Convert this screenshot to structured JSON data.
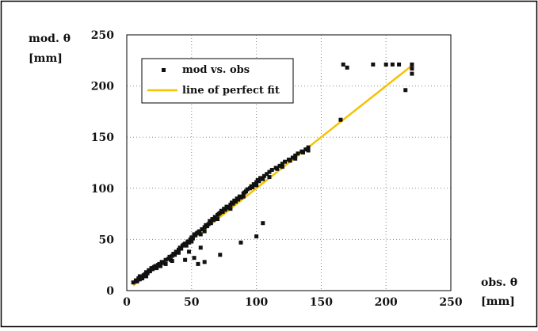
{
  "chart_data": {
    "type": "scatter",
    "title": "",
    "ylabel_line1": "mod. θ",
    "ylabel_line2": "[mm]",
    "xlabel_line1": "obs. θ",
    "xlabel_line2": "[mm]",
    "xlim": [
      0,
      250
    ],
    "ylim": [
      0,
      250
    ],
    "xticks": [
      0,
      50,
      100,
      150,
      200,
      250
    ],
    "yticks": [
      0,
      50,
      100,
      150,
      200,
      250
    ],
    "grid": true,
    "legend_position": "top-left",
    "legend": {
      "scatter_label": "mod vs. obs",
      "line_label": "line of perfect fit"
    },
    "colors": {
      "points": "#111111",
      "fit_line": "#f5c200",
      "grid": "#8a8a8a",
      "frame": "#000000"
    },
    "series": [
      {
        "name": "mod vs. obs",
        "kind": "scatter",
        "x": [
          5,
          7,
          8,
          9,
          10,
          10,
          11,
          12,
          13,
          14,
          15,
          15,
          16,
          17,
          18,
          19,
          20,
          21,
          22,
          23,
          24,
          25,
          26,
          27,
          28,
          30,
          30,
          32,
          33,
          34,
          35,
          35,
          36,
          37,
          38,
          40,
          40,
          41,
          42,
          43,
          44,
          45,
          46,
          47,
          48,
          49,
          50,
          50,
          51,
          52,
          53,
          54,
          55,
          56,
          57,
          58,
          60,
          60,
          61,
          62,
          63,
          64,
          65,
          66,
          67,
          68,
          70,
          70,
          71,
          72,
          73,
          74,
          75,
          76,
          77,
          78,
          80,
          80,
          81,
          82,
          83,
          84,
          85,
          86,
          87,
          88,
          90,
          90,
          91,
          92,
          93,
          95,
          96,
          97,
          98,
          100,
          100,
          101,
          102,
          103,
          105,
          106,
          108,
          110,
          110,
          112,
          115,
          116,
          118,
          120,
          120,
          122,
          125,
          126,
          128,
          130,
          130,
          132,
          135,
          136,
          138,
          140,
          140,
          165,
          167,
          170,
          190,
          200,
          205,
          210,
          215,
          220,
          220,
          220,
          55,
          57,
          60,
          72,
          88,
          100,
          105,
          45,
          48,
          52
        ],
        "y": [
          8,
          10,
          9,
          12,
          11,
          14,
          13,
          12,
          15,
          16,
          18,
          14,
          17,
          20,
          19,
          22,
          21,
          23,
          24,
          22,
          25,
          26,
          24,
          28,
          27,
          30,
          26,
          31,
          33,
          30,
          34,
          29,
          36,
          35,
          38,
          40,
          37,
          42,
          41,
          44,
          45,
          46,
          44,
          48,
          47,
          50,
          52,
          48,
          51,
          55,
          54,
          56,
          57,
          58,
          55,
          60,
          62,
          58,
          64,
          63,
          65,
          68,
          66,
          70,
          69,
          72,
          74,
          70,
          75,
          76,
          78,
          77,
          80,
          79,
          82,
          81,
          84,
          80,
          86,
          85,
          88,
          87,
          90,
          89,
          92,
          91,
          95,
          92,
          96,
          97,
          99,
          100,
          102,
          101,
          104,
          106,
          103,
          108,
          107,
          110,
          109,
          112,
          114,
          116,
          111,
          118,
          120,
          119,
          122,
          124,
          121,
          126,
          128,
          127,
          130,
          132,
          129,
          134,
          136,
          135,
          138,
          140,
          137,
          167,
          221,
          218,
          221,
          221,
          221,
          221,
          196,
          221,
          217,
          212,
          26,
          42,
          28,
          35,
          47,
          53,
          66,
          30,
          38,
          32
        ]
      },
      {
        "name": "line of perfect fit",
        "kind": "line",
        "x": [
          5,
          220
        ],
        "y": [
          5,
          220
        ]
      }
    ]
  }
}
